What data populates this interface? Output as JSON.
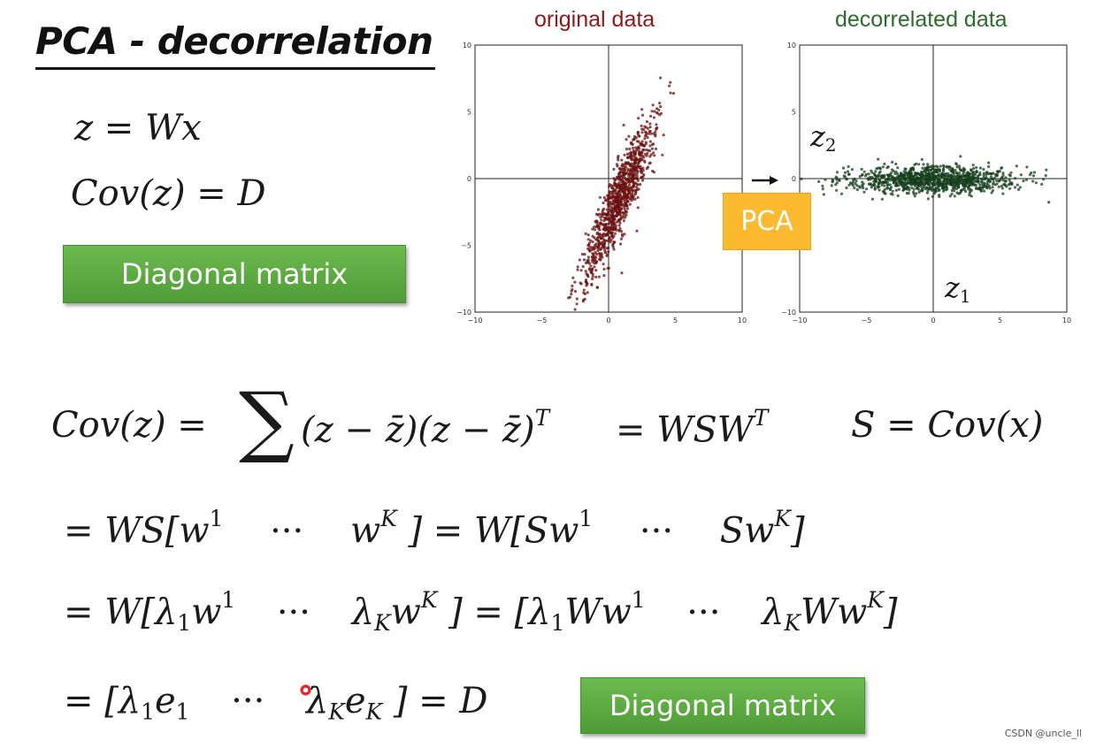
{
  "title": "PCA - decorrelation",
  "left_equations": {
    "eq1": {
      "lhs": "z",
      "eq": "=",
      "rhs": "Wx"
    },
    "eq2": {
      "lhs": "Cov(z)",
      "eq": "=",
      "rhs": "D"
    }
  },
  "badges": {
    "diagonal_top": "Diagonal matrix",
    "diagonal_bottom": "Diagonal matrix"
  },
  "pca_box_label": "PCA",
  "chart_data": [
    {
      "type": "scatter",
      "title": "original data",
      "title_color": "#8b1a1a",
      "point_color": "#6b1111",
      "xlim": [
        -10,
        10
      ],
      "ylim": [
        -10,
        10
      ],
      "xticks": [
        "−10",
        "−5",
        "0",
        "5",
        "10"
      ],
      "yticks": [
        "10",
        "5",
        "0",
        "−5",
        "−10"
      ],
      "distribution": {
        "center": [
          0.8,
          -1.6
        ],
        "major_sigma": 3.2,
        "minor_sigma": 0.55,
        "angle_deg": 67,
        "n": 1000
      }
    },
    {
      "type": "scatter",
      "title": "decorrelated data",
      "title_color": "#2e6b2e",
      "point_color": "#163f1c",
      "xlim": [
        -10,
        10
      ],
      "ylim": [
        -10,
        10
      ],
      "xticks": [
        "−10",
        "−5",
        "0",
        "5",
        "10"
      ],
      "yticks": [
        "10",
        "5",
        "0",
        "−5",
        "−10"
      ],
      "axis_labels": {
        "z2": "z",
        "z2_sub": "2",
        "z1": "z",
        "z1_sub": "1"
      },
      "distribution": {
        "center": [
          0.0,
          -0.1
        ],
        "major_sigma": 3.2,
        "minor_sigma": 0.5,
        "angle_deg": 0,
        "n": 1000
      }
    }
  ],
  "derivation": {
    "line1": {
      "lhs": "Cov(z) =",
      "sigma": "∑",
      "body": "(z − z̄)(z − z̄)",
      "sup_T": "T",
      "eq2": "= WSW",
      "sup_T2": "T",
      "s_def": "S = Cov(x)"
    },
    "line2": {
      "p1": "= WS[w",
      "s1": "1",
      "dots1": "···",
      "p2": "w",
      "s2": "K",
      "p3": "] = W[Sw",
      "s3": "1",
      "dots2": "···",
      "p4": "Sw",
      "s4": "K",
      "p5": "]"
    },
    "line3": {
      "p1": "= W[λ",
      "b1": "1",
      "p2": "w",
      "s1": "1",
      "dots1": "···",
      "p3": "λ",
      "b2": "K",
      "p4": "w",
      "s2": "K",
      "p5": "] = [λ",
      "b3": "1",
      "p6": "Ww",
      "s3": "1",
      "dots2": "···",
      "p7": "λ",
      "b4": "K",
      "p8": "Ww",
      "s4": "K",
      "p9": "]"
    },
    "line4": {
      "p1": "= [λ",
      "b1": "1",
      "p2": "e",
      "b2": "1",
      "dots": "···",
      "p3": "λ",
      "b3": "K",
      "p4": "e",
      "b4": "K",
      "p5": "] = D"
    }
  },
  "watermark": "CSDN @uncle_ll"
}
